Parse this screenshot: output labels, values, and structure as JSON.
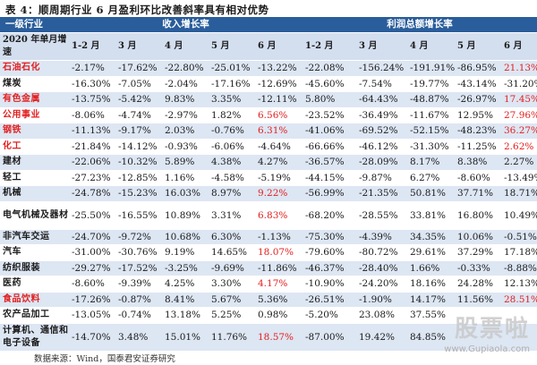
{
  "title": "表 4：顺周期行业 6 月盈利环比改善斜率具有相对优势",
  "header": {
    "col1": "一级行业",
    "group1": "收入增长率",
    "group2": "利润总额增长率",
    "row_label": "2020 年单月增速",
    "months": [
      "1-2 月",
      "3 月",
      "4 月",
      "5 月",
      "6 月",
      "1-2 月",
      "3 月",
      "4 月",
      "5 月",
      "6 月"
    ]
  },
  "rows": [
    {
      "name": "石油石化",
      "red_name": true,
      "values": [
        "-2.17%",
        "-17.62%",
        "-22.80%",
        "-25.01%",
        "-13.22%",
        "-22.08%",
        "-156.24%",
        "-191.91%",
        "-86.95%",
        "21.13%"
      ],
      "red": [
        9
      ]
    },
    {
      "name": "煤炭",
      "red_name": false,
      "values": [
        "-16.30%",
        "-7.05%",
        "-2.04%",
        "-17.16%",
        "-12.69%",
        "-45.60%",
        "-7.54%",
        "-19.77%",
        "-43.14%",
        "-31.20%"
      ],
      "red": []
    },
    {
      "name": "有色金属",
      "red_name": true,
      "values": [
        "-13.75%",
        "-5.42%",
        "9.83%",
        "3.35%",
        "-12.11%",
        "5.80%",
        "-64.43%",
        "-48.87%",
        "-26.97%",
        "17.45%"
      ],
      "red": [
        9
      ]
    },
    {
      "name": "公用事业",
      "red_name": true,
      "values": [
        "-8.06%",
        "-4.74%",
        "-2.97%",
        "1.82%",
        "6.56%",
        "-23.52%",
        "-36.49%",
        "-11.67%",
        "12.95%",
        "27.96%"
      ],
      "red": [
        4,
        9
      ]
    },
    {
      "name": "钢铁",
      "red_name": true,
      "values": [
        "-11.13%",
        "-9.17%",
        "2.03%",
        "-0.76%",
        "6.31%",
        "-41.06%",
        "-69.52%",
        "-52.15%",
        "-48.23%",
        "36.27%"
      ],
      "red": [
        4,
        9
      ]
    },
    {
      "name": "化工",
      "red_name": true,
      "values": [
        "-21.84%",
        "-14.12%",
        "-0.93%",
        "-6.06%",
        "-4.64%",
        "-66.66%",
        "-46.12%",
        "-31.30%",
        "-11.25%",
        "2.62%"
      ],
      "red": [
        9
      ]
    },
    {
      "name": "建材",
      "red_name": false,
      "values": [
        "-22.06%",
        "-10.32%",
        "5.89%",
        "4.38%",
        "4.27%",
        "-36.57%",
        "-28.09%",
        "8.17%",
        "8.38%",
        "2.27%"
      ],
      "red": []
    },
    {
      "name": "轻工",
      "red_name": false,
      "values": [
        "-27.23%",
        "-12.85%",
        "1.16%",
        "-4.58%",
        "-5.19%",
        "-44.15%",
        "-9.87%",
        "6.27%",
        "-8.60%",
        "-13.49%"
      ],
      "red": []
    },
    {
      "name": "机械",
      "red_name": false,
      "values": [
        "-24.78%",
        "-15.23%",
        "16.03%",
        "8.97%",
        "9.22%",
        "-56.99%",
        "-21.35%",
        "50.81%",
        "37.71%",
        "18.71%"
      ],
      "red": [
        4
      ]
    },
    {
      "name": "电气机械及器材",
      "red_name": false,
      "tall": true,
      "values": [
        "-25.50%",
        "-16.55%",
        "10.89%",
        "3.31%",
        "6.83%",
        "-68.20%",
        "-28.55%",
        "33.81%",
        "16.80%",
        "10.49%"
      ],
      "red": [
        4
      ]
    },
    {
      "name": "非汽车交运",
      "red_name": false,
      "values": [
        "-24.70%",
        "-9.72%",
        "10.68%",
        "6.30%",
        "-1.13%",
        "-75.30%",
        "-4.39%",
        "34.35%",
        "10.06%",
        "-0.51%"
      ],
      "red": []
    },
    {
      "name": "汽车",
      "red_name": false,
      "values": [
        "-31.00%",
        "-30.76%",
        "9.19%",
        "14.65%",
        "18.07%",
        "-79.60%",
        "-80.72%",
        "29.61%",
        "37.29%",
        "17.18%"
      ],
      "red": [
        4
      ]
    },
    {
      "name": "纺织服装",
      "red_name": false,
      "values": [
        "-29.27%",
        "-17.52%",
        "-3.25%",
        "-9.69%",
        "-11.86%",
        "-46.37%",
        "-28.40%",
        "1.66%",
        "-0.33%",
        "-8.88%"
      ],
      "red": []
    },
    {
      "name": "医药",
      "red_name": false,
      "values": [
        "-8.60%",
        "-9.39%",
        "4.25%",
        "3.30%",
        "4.17%",
        "-10.90%",
        "-24.20%",
        "18.16%",
        "24.28%",
        "12.13%"
      ],
      "red": [
        4
      ]
    },
    {
      "name": "食品饮料",
      "red_name": true,
      "values": [
        "-17.26%",
        "-0.87%",
        "8.41%",
        "5.67%",
        "5.36%",
        "-26.51%",
        "-1.90%",
        "14.17%",
        "11.56%",
        "28.51%"
      ],
      "red": [
        9
      ]
    },
    {
      "name": "农产品加工",
      "red_name": false,
      "values": [
        "-13.05%",
        "-0.74%",
        "13.18%",
        "5.25%",
        "0.98%",
        "-5.20%",
        "23.08%",
        "37.55%",
        "",
        ""
      ],
      "red": []
    },
    {
      "name": "计算机、通信和电子设备",
      "red_name": false,
      "tall": true,
      "values": [
        "-14.70%",
        "3.48%",
        "15.01%",
        "11.76%",
        "18.57%",
        "-87.00%",
        "19.42%",
        "84.85%",
        "",
        ""
      ],
      "red": [
        4
      ]
    }
  ],
  "source": "数据来源：Wind，国泰君安证券研究",
  "watermark": {
    "main": "股票啦",
    "sub": "www.Gupiaola.com"
  }
}
